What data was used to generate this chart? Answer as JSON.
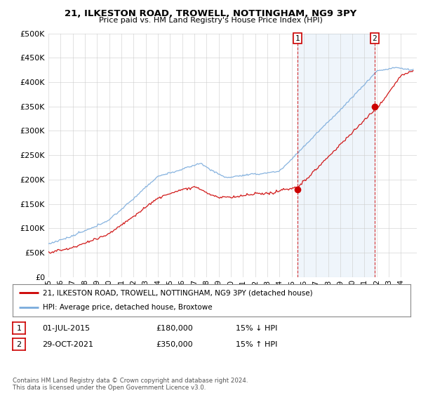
{
  "title1": "21, ILKESTON ROAD, TROWELL, NOTTINGHAM, NG9 3PY",
  "title2": "Price paid vs. HM Land Registry's House Price Index (HPI)",
  "ylabel_ticks": [
    "£0",
    "£50K",
    "£100K",
    "£150K",
    "£200K",
    "£250K",
    "£300K",
    "£350K",
    "£400K",
    "£450K",
    "£500K"
  ],
  "ytick_values": [
    0,
    50000,
    100000,
    150000,
    200000,
    250000,
    300000,
    350000,
    400000,
    450000,
    500000
  ],
  "xlim_start": 1995.0,
  "xlim_end": 2025.3,
  "ylim": [
    0,
    500000
  ],
  "transaction1_x": 2015.5,
  "transaction1_y": 180000,
  "transaction1_label": "1",
  "transaction2_x": 2021.83,
  "transaction2_y": 350000,
  "transaction2_label": "2",
  "legend_line1": "21, ILKESTON ROAD, TROWELL, NOTTINGHAM, NG9 3PY (detached house)",
  "legend_line2": "HPI: Average price, detached house, Broxtowe",
  "table_row1": [
    "1",
    "01-JUL-2015",
    "£180,000",
    "15% ↓ HPI"
  ],
  "table_row2": [
    "2",
    "29-OCT-2021",
    "£350,000",
    "15% ↑ HPI"
  ],
  "footer": "Contains HM Land Registry data © Crown copyright and database right 2024.\nThis data is licensed under the Open Government Licence v3.0.",
  "line_color_red": "#cc0000",
  "line_color_blue": "#7aabdc",
  "shade_color": "#ddeeff",
  "vline_color": "#cc0000",
  "bg_color": "#ffffff",
  "plot_bg": "#ffffff"
}
